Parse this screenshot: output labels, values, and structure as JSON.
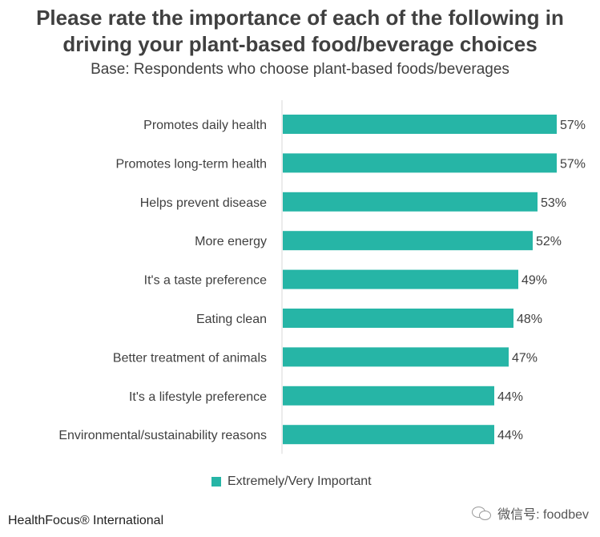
{
  "header": {
    "title": "Please rate the importance of each of the following in driving your plant-based food/beverage choices",
    "subtitle": "Base: Respondents who choose plant-based foods/beverages"
  },
  "chart_data": {
    "type": "bar",
    "orientation": "horizontal",
    "categories": [
      "Promotes daily health",
      "Promotes long-term health",
      "Helps prevent disease",
      "More energy",
      "It's a taste preference",
      "Eating clean",
      "Better treatment of animals",
      "It's a lifestyle preference",
      "Environmental/sustainability reasons"
    ],
    "series": [
      {
        "name": "Extremely/Very Important",
        "values": [
          57,
          57,
          53,
          52,
          49,
          48,
          47,
          44,
          44
        ]
      }
    ],
    "value_labels": [
      "57%",
      "57%",
      "53%",
      "52%",
      "49%",
      "48%",
      "47%",
      "44%",
      "44%"
    ],
    "xlim": [
      0,
      57
    ],
    "grid": false,
    "legend_position": "bottom",
    "bar_color": "#26b5a6"
  },
  "legend": {
    "label": "Extremely/Very Important"
  },
  "footer": {
    "source": "HealthFocus® International",
    "watermark": "微信号: foodbev",
    "watermark_icon": "wechat-icon"
  }
}
